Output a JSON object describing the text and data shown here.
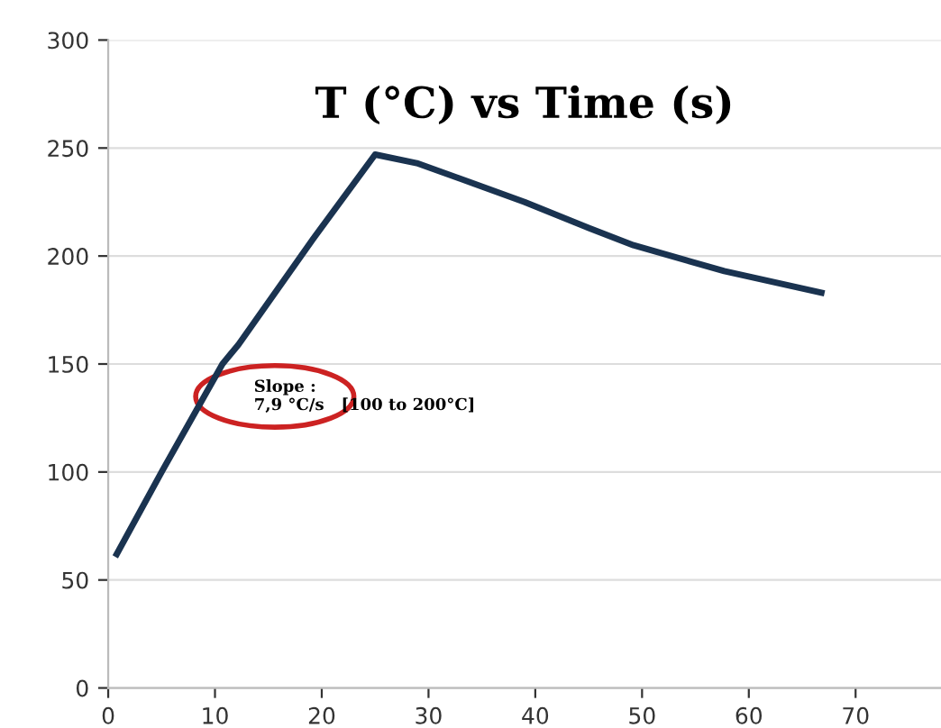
{
  "chart_data": {
    "type": "line",
    "title": "T (°C) vs Time (s)",
    "x": [
      0.8,
      5,
      10.7,
      12.2,
      19.2,
      25,
      28.9,
      34,
      39,
      45,
      49.2,
      57.7,
      66.8
    ],
    "series": [
      {
        "color": "#1a3350",
        "values": [
          62,
          100,
          150,
          159,
          208,
          247,
          243,
          234,
          225,
          213,
          205,
          193,
          183
        ]
      }
    ],
    "xlim": [
      0,
      78
    ],
    "ylim": [
      0,
      300
    ],
    "xticks": [
      0,
      10,
      20,
      30,
      40,
      50,
      60,
      70
    ],
    "yticks": [
      0,
      50,
      100,
      150,
      200,
      250,
      300
    ],
    "grid": "y",
    "marker": "none",
    "line_style": "solid",
    "annotations": [
      "Slope :\n7,9 °C/s   [100 to 200°C]"
    ]
  }
}
